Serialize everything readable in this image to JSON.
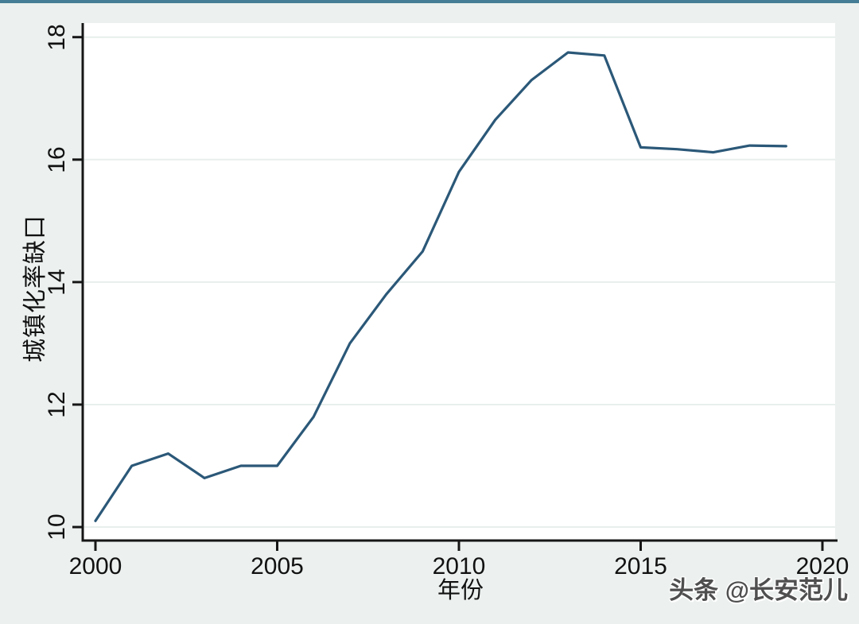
{
  "page": {
    "background": "#ecf1ef",
    "top_bar_color": "#447d95"
  },
  "chart_data": {
    "type": "line",
    "title": "",
    "xlabel": "年份",
    "ylabel": "城镇化率缺口",
    "x": [
      2000,
      2001,
      2002,
      2003,
      2004,
      2005,
      2006,
      2007,
      2008,
      2009,
      2010,
      2011,
      2012,
      2013,
      2014,
      2015,
      2016,
      2017,
      2018,
      2019
    ],
    "series": [
      {
        "name": "城镇化率缺口",
        "color": "#2b5878",
        "values": [
          10.1,
          11.0,
          11.2,
          10.8,
          11.0,
          11.0,
          11.8,
          13.0,
          13.8,
          14.5,
          15.8,
          16.65,
          17.3,
          17.75,
          17.7,
          16.2,
          16.17,
          16.12,
          16.23,
          16.22
        ]
      }
    ],
    "x_ticks": [
      "2000",
      "2005",
      "2010",
      "2015",
      "2020"
    ],
    "x_tick_values": [
      2000,
      2005,
      2010,
      2015,
      2020
    ],
    "y_ticks": [
      "10",
      "12",
      "14",
      "16",
      "18"
    ],
    "y_tick_values": [
      10,
      12,
      14,
      16,
      18
    ],
    "xlim": [
      1999.65,
      2020.35
    ],
    "ylim": [
      9.78,
      18.23
    ],
    "grid": "horizontal-only",
    "legend": "none",
    "plot_bg": "#ffffff",
    "grid_color": "#e7efec",
    "axis_color": "#161616"
  },
  "watermark": {
    "text": "头条 @长安范儿",
    "color": "#4f4f4f"
  }
}
